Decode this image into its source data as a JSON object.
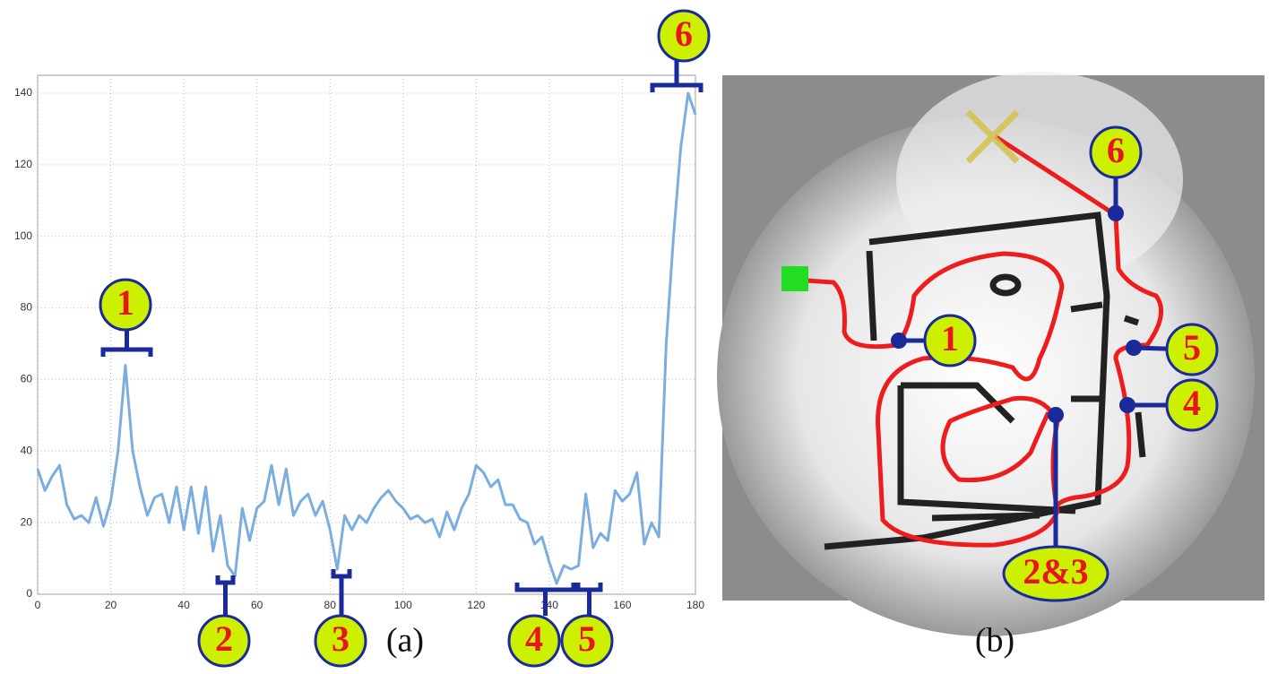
{
  "chart_data": {
    "type": "line",
    "x": [
      0,
      2,
      4,
      6,
      8,
      10,
      12,
      14,
      16,
      18,
      20,
      22,
      24,
      26,
      28,
      30,
      32,
      34,
      36,
      38,
      40,
      42,
      44,
      46,
      48,
      50,
      52,
      54,
      56,
      58,
      60,
      62,
      64,
      66,
      68,
      70,
      72,
      74,
      76,
      78,
      80,
      82,
      84,
      86,
      88,
      90,
      92,
      94,
      96,
      98,
      100,
      102,
      104,
      106,
      108,
      110,
      112,
      114,
      116,
      118,
      120,
      122,
      124,
      126,
      128,
      130,
      132,
      134,
      136,
      138,
      140,
      142,
      144,
      146,
      148,
      150,
      152,
      154,
      156,
      158,
      160,
      162,
      164,
      166,
      168,
      170,
      172,
      174,
      176,
      178,
      180
    ],
    "series": [
      {
        "color": "#7aaee0",
        "values": [
          35,
          29,
          33,
          36,
          25,
          21,
          22,
          20,
          27,
          19,
          26,
          40,
          64,
          40,
          30,
          22,
          27,
          28,
          20,
          30,
          18,
          30,
          17,
          30,
          12,
          22,
          8,
          5,
          24,
          15,
          24,
          26,
          36,
          25,
          35,
          22,
          26,
          28,
          22,
          26,
          18,
          7,
          22,
          18,
          22,
          20,
          24,
          27,
          29,
          26,
          24,
          21,
          22,
          20,
          21,
          16,
          23,
          18,
          24,
          28,
          36,
          34,
          30,
          32,
          25,
          25,
          21,
          20,
          14,
          16,
          9,
          3,
          8,
          7,
          8,
          28,
          13,
          17,
          15,
          29,
          26,
          28,
          34,
          14,
          20,
          16,
          70,
          100,
          125,
          140,
          134
        ]
      }
    ],
    "xlim": [
      0,
      180
    ],
    "ylim": [
      0,
      140
    ],
    "xticks": [
      0,
      20,
      40,
      60,
      80,
      100,
      120,
      140,
      160,
      180
    ],
    "yticks": [
      0,
      20,
      40,
      60,
      80,
      100,
      120,
      140
    ],
    "grid": true,
    "annotations": [
      "1",
      "2",
      "3",
      "4",
      "5",
      "6"
    ],
    "panel_label": "(a)"
  },
  "map": {
    "panel_label": "(b)",
    "callouts": [
      "1",
      "5",
      "4",
      "6",
      "2&3"
    ]
  }
}
